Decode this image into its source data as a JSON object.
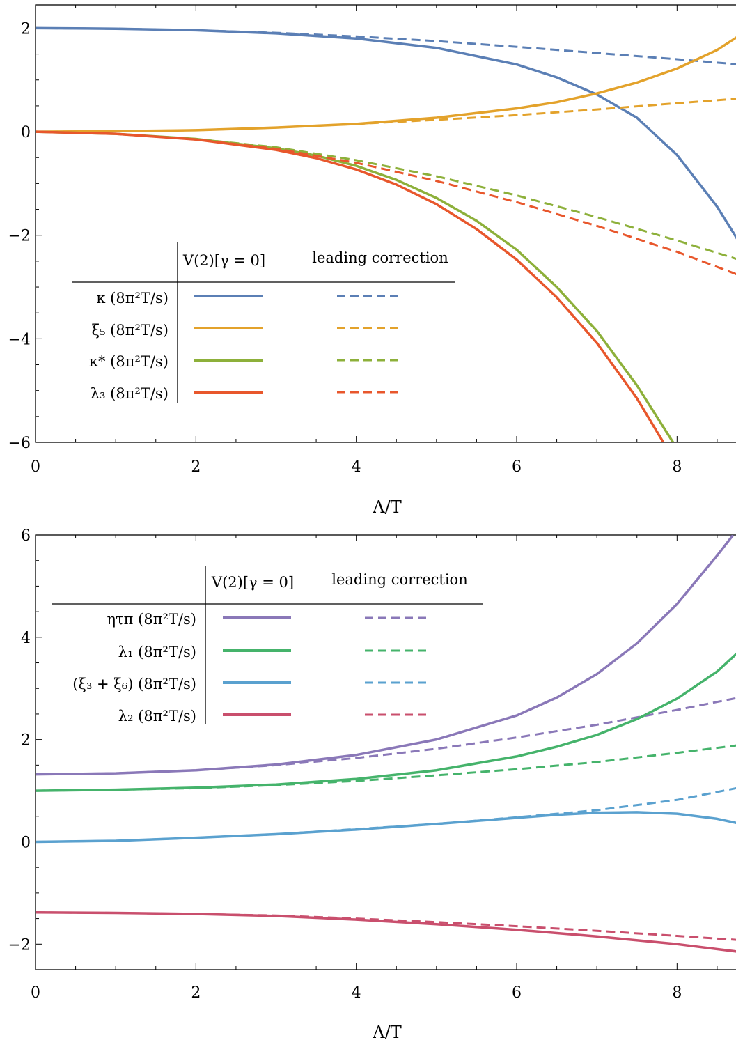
{
  "chart_data": [
    {
      "type": "line",
      "xlabel": "Λ/T",
      "ylabel": "",
      "xlim": [
        0,
        8.77
      ],
      "ylim": [
        -6,
        2.45
      ],
      "xticks": [
        0,
        2,
        4,
        6,
        8
      ],
      "xtick_labels": [
        "0",
        "2",
        "4",
        "6",
        "8"
      ],
      "yticks": [
        -6,
        -4,
        -2,
        0,
        2
      ],
      "ytick_labels": [
        "−6",
        "−4",
        "−2",
        "0",
        "2"
      ],
      "legend": {
        "placement": "lower-left",
        "col_headers": [
          "V(2)[γ = 0]",
          "leading correction"
        ],
        "rows": [
          "κ (8π²T/s)",
          "ξ₅ (8π²T/s)",
          "κ* (8π²T/s)",
          "λ₃ (8π²T/s)"
        ]
      },
      "series": [
        {
          "name": "κ (8π²T/s)",
          "style": "solid",
          "color": "#5b7fb5",
          "x": [
            0,
            1,
            2,
            3,
            4,
            5,
            6,
            6.5,
            7,
            7.5,
            8,
            8.5,
            8.77
          ],
          "y": [
            2.0,
            1.99,
            1.96,
            1.9,
            1.8,
            1.62,
            1.3,
            1.05,
            0.72,
            0.27,
            -0.45,
            -1.45,
            -2.12
          ]
        },
        {
          "name": "κ (8π²T/s)",
          "style": "dashed",
          "color": "#5b7fb5",
          "x": [
            0,
            1,
            2,
            3,
            4,
            5,
            6,
            7,
            8,
            8.77
          ],
          "y": [
            2.0,
            1.99,
            1.96,
            1.91,
            1.84,
            1.75,
            1.64,
            1.52,
            1.4,
            1.3
          ]
        },
        {
          "name": "ξ₅ (8π²T/s)",
          "style": "solid",
          "color": "#e3a22b",
          "x": [
            0,
            1,
            2,
            3,
            4,
            5,
            6,
            6.5,
            7,
            7.5,
            8,
            8.5,
            8.77
          ],
          "y": [
            0,
            0.01,
            0.03,
            0.08,
            0.15,
            0.27,
            0.45,
            0.57,
            0.74,
            0.95,
            1.22,
            1.58,
            1.85
          ]
        },
        {
          "name": "ξ₅ (8π²T/s)",
          "style": "dashed",
          "color": "#e3a22b",
          "x": [
            0,
            1,
            2,
            3,
            4,
            5,
            6,
            7,
            8,
            8.77
          ],
          "y": [
            0,
            0.01,
            0.03,
            0.08,
            0.15,
            0.23,
            0.32,
            0.43,
            0.55,
            0.64
          ]
        },
        {
          "name": "κ* (8π²T/s)",
          "style": "solid",
          "color": "#8db03a",
          "x": [
            0,
            1,
            2,
            3,
            3.5,
            4,
            4.5,
            5,
            5.5,
            6,
            6.5,
            7,
            7.5,
            7.95
          ],
          "y": [
            0,
            -0.04,
            -0.14,
            -0.32,
            -0.46,
            -0.66,
            -0.93,
            -1.28,
            -1.72,
            -2.28,
            -3.0,
            -3.85,
            -4.9,
            -6.0
          ]
        },
        {
          "name": "κ* (8π²T/s)",
          "style": "dashed",
          "color": "#8db03a",
          "x": [
            0,
            1,
            2,
            3,
            4,
            5,
            6,
            7,
            8,
            8.77
          ],
          "y": [
            0,
            -0.04,
            -0.14,
            -0.3,
            -0.55,
            -0.86,
            -1.23,
            -1.65,
            -2.1,
            -2.47
          ]
        },
        {
          "name": "λ₃ (8π²T/s)",
          "style": "solid",
          "color": "#e8572c",
          "x": [
            0,
            1,
            2,
            3,
            3.5,
            4,
            4.5,
            5,
            5.5,
            6,
            6.5,
            7,
            7.5,
            7.83
          ],
          "y": [
            0,
            -0.04,
            -0.15,
            -0.35,
            -0.51,
            -0.73,
            -1.02,
            -1.4,
            -1.88,
            -2.47,
            -3.2,
            -4.08,
            -5.15,
            -6.0
          ]
        },
        {
          "name": "λ₃ (8π²T/s)",
          "style": "dashed",
          "color": "#e8572c",
          "x": [
            0,
            1,
            2,
            3,
            4,
            5,
            6,
            7,
            8,
            8.77
          ],
          "y": [
            0,
            -0.04,
            -0.15,
            -0.33,
            -0.6,
            -0.95,
            -1.36,
            -1.82,
            -2.32,
            -2.77
          ]
        }
      ]
    },
    {
      "type": "line",
      "xlabel": "Λ/T",
      "ylabel": "",
      "xlim": [
        0,
        8.77
      ],
      "ylim": [
        -2.5,
        6
      ],
      "xticks": [
        0,
        2,
        4,
        6,
        8
      ],
      "xtick_labels": [
        "0",
        "2",
        "4",
        "6",
        "8"
      ],
      "yticks": [
        -2,
        0,
        2,
        4,
        6
      ],
      "ytick_labels": [
        "−2",
        "0",
        "2",
        "4",
        "6"
      ],
      "legend": {
        "placement": "top-left",
        "col_headers": [
          "V(2)[γ = 0]",
          "leading correction"
        ],
        "rows": [
          "ητπ (8π²T/s)",
          "λ₁ (8π²T/s)",
          "(ξ₃ + ξ₆) (8π²T/s)",
          "λ₂ (8π²T/s)"
        ]
      },
      "series": [
        {
          "name": "ητπ (8π²T/s)",
          "style": "solid",
          "color": "#8a78b8",
          "x": [
            0,
            1,
            2,
            3,
            4,
            5,
            6,
            6.5,
            7,
            7.5,
            8,
            8.5,
            8.7
          ],
          "y": [
            1.32,
            1.34,
            1.4,
            1.51,
            1.7,
            2.0,
            2.47,
            2.82,
            3.28,
            3.88,
            4.65,
            5.6,
            6.0
          ]
        },
        {
          "name": "ητπ (8π²T/s)",
          "style": "dashed",
          "color": "#8a78b8",
          "x": [
            0,
            1,
            2,
            3,
            4,
            5,
            6,
            7,
            8,
            8.77
          ],
          "y": [
            1.32,
            1.34,
            1.4,
            1.5,
            1.64,
            1.82,
            2.04,
            2.29,
            2.58,
            2.82
          ]
        },
        {
          "name": "λ₁ (8π²T/s)",
          "style": "solid",
          "color": "#45b36b",
          "x": [
            0,
            1,
            2,
            3,
            4,
            5,
            6,
            6.5,
            7,
            7.5,
            8,
            8.5,
            8.77
          ],
          "y": [
            1.0,
            1.02,
            1.06,
            1.12,
            1.23,
            1.4,
            1.67,
            1.86,
            2.09,
            2.4,
            2.8,
            3.33,
            3.72
          ]
        },
        {
          "name": "λ₁ (8π²T/s)",
          "style": "dashed",
          "color": "#45b36b",
          "x": [
            0,
            1,
            2,
            3,
            4,
            5,
            6,
            7,
            8,
            8.77
          ],
          "y": [
            1.0,
            1.02,
            1.05,
            1.11,
            1.19,
            1.3,
            1.42,
            1.56,
            1.74,
            1.89
          ]
        },
        {
          "name": "(ξ₃ + ξ₆) (8π²T/s)",
          "style": "solid",
          "color": "#5aa1cf",
          "x": [
            0,
            1,
            2,
            3,
            4,
            5,
            6,
            6.5,
            7,
            7.5,
            8,
            8.5,
            8.77
          ],
          "y": [
            0,
            0.02,
            0.08,
            0.15,
            0.24,
            0.35,
            0.47,
            0.53,
            0.57,
            0.58,
            0.55,
            0.45,
            0.36
          ]
        },
        {
          "name": "(ξ₃ + ξ₆) (8π²T/s)",
          "style": "dashed",
          "color": "#5aa1cf",
          "x": [
            0,
            1,
            2,
            3,
            4,
            5,
            6,
            7,
            8,
            8.77
          ],
          "y": [
            0,
            0.02,
            0.08,
            0.15,
            0.25,
            0.35,
            0.48,
            0.62,
            0.82,
            1.06
          ]
        },
        {
          "name": "λ₂ (8π²T/s)",
          "style": "solid",
          "color": "#c94f6d",
          "x": [
            0,
            1,
            2,
            3,
            4,
            5,
            6,
            7,
            8,
            8.77
          ],
          "y": [
            -1.38,
            -1.39,
            -1.41,
            -1.45,
            -1.52,
            -1.61,
            -1.72,
            -1.85,
            -2.0,
            -2.15
          ]
        },
        {
          "name": "λ₂ (8π²T/s)",
          "style": "dashed",
          "color": "#c94f6d",
          "x": [
            0,
            1,
            2,
            3,
            4,
            5,
            6,
            7,
            8,
            8.77
          ],
          "y": [
            -1.38,
            -1.39,
            -1.41,
            -1.44,
            -1.5,
            -1.57,
            -1.65,
            -1.74,
            -1.84,
            -1.92
          ]
        }
      ]
    }
  ]
}
